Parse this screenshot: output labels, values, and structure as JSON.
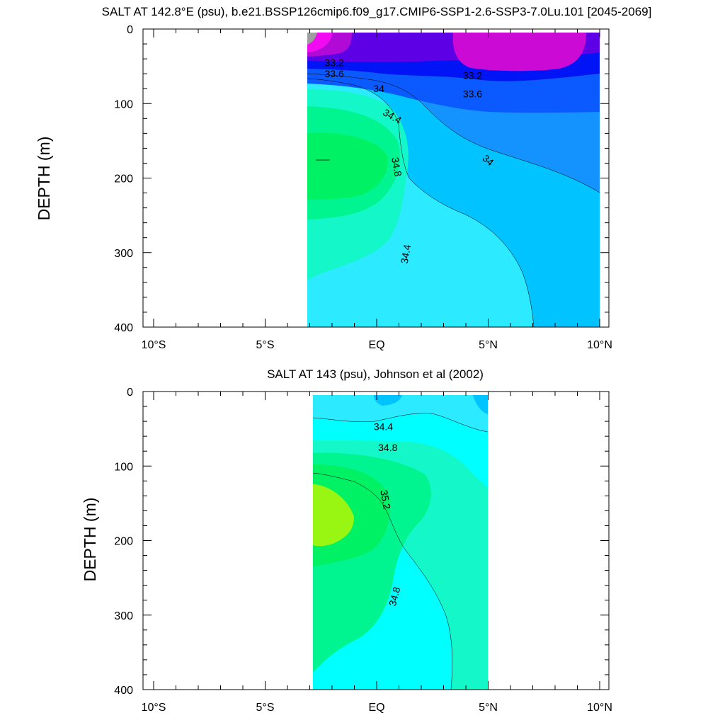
{
  "chart_data": [
    {
      "type": "contour",
      "title": "SALT AT 142.8°E (psu), b.e21.BSSP126cmip6.f09_g17.CMIP6-SSP1-2.6-SSP3-7.0Lu.101 [2045-2069]",
      "ylabel": "DEPTH (m)",
      "xlabel": "",
      "x_range": [
        -10,
        10
      ],
      "y_range": [
        0,
        400
      ],
      "y_reversed": true,
      "x_ticks": [
        {
          "value": -10,
          "label": "10°S"
        },
        {
          "value": -5,
          "label": "5°S"
        },
        {
          "value": 0,
          "label": "EQ"
        },
        {
          "value": 5,
          "label": "5°N"
        },
        {
          "value": 10,
          "label": "10°N"
        }
      ],
      "y_ticks": [
        {
          "value": 0,
          "label": "0"
        },
        {
          "value": 100,
          "label": "100"
        },
        {
          "value": 200,
          "label": "200"
        },
        {
          "value": 300,
          "label": "300"
        },
        {
          "value": 400,
          "label": "400"
        }
      ],
      "data_extent": {
        "lat": [
          -3.2,
          10
        ],
        "depth": [
          5,
          400
        ]
      },
      "fill_colors": {
        "gray": "#9e9e9e",
        "magenta": "#f20af2",
        "purple": "#b10ad6",
        "violet": "#5e00e6",
        "blue": "#0014f5",
        "mid_blue": "#0a5aff",
        "sky_blue": "#1493ff",
        "azure": "#00c3ff",
        "light_cyan": "#2ceaff",
        "aqua_green": "#14f7c8",
        "sea_green": "#00f590",
        "green": "#00f264"
      },
      "contour_labels": [
        {
          "text": "33.2",
          "lat": -1.9,
          "depth": 45,
          "angle": 0
        },
        {
          "text": "33.6",
          "lat": -1.9,
          "depth": 60,
          "angle": 0
        },
        {
          "text": "34",
          "lat": 0.1,
          "depth": 80,
          "angle": 0
        },
        {
          "text": "34.4",
          "lat": 0.7,
          "depth": 117,
          "angle": 30
        },
        {
          "text": "34.8",
          "lat": 0.9,
          "depth": 185,
          "angle": 80
        },
        {
          "text": "34.4",
          "lat": 1.3,
          "depth": 302,
          "angle": -80
        },
        {
          "text": "33.2",
          "lat": 4.3,
          "depth": 62,
          "angle": 0
        },
        {
          "text": "33.6",
          "lat": 4.3,
          "depth": 87,
          "angle": 0
        },
        {
          "text": "34",
          "lat": 5.0,
          "depth": 176,
          "angle": 40
        }
      ]
    },
    {
      "type": "contour",
      "title": "SALT AT 143 (psu), Johnson et al (2002)",
      "ylabel": "DEPTH (m)",
      "xlabel": "",
      "x_range": [
        -10,
        10
      ],
      "y_range": [
        0,
        400
      ],
      "y_reversed": true,
      "x_ticks": [
        {
          "value": -10,
          "label": "10°S"
        },
        {
          "value": -5,
          "label": "5°S"
        },
        {
          "value": 0,
          "label": "EQ"
        },
        {
          "value": 5,
          "label": "5°N"
        },
        {
          "value": 10,
          "label": "10°N"
        }
      ],
      "y_ticks": [
        {
          "value": 0,
          "label": "0"
        },
        {
          "value": 100,
          "label": "100"
        },
        {
          "value": 200,
          "label": "200"
        },
        {
          "value": 300,
          "label": "300"
        },
        {
          "value": 400,
          "label": "400"
        }
      ],
      "data_extent": {
        "lat": [
          -2.9,
          5
        ],
        "depth": [
          5,
          400
        ]
      },
      "fill_colors": {
        "azure": "#00c3ff",
        "light_cyan": "#2ceaff",
        "cyan": "#00ffff",
        "aqua_green": "#14f7c8",
        "sea_green": "#00f590",
        "green": "#00f264",
        "lime": "#99f512"
      },
      "contour_labels": [
        {
          "text": "34.4",
          "lat": 0.3,
          "depth": 47,
          "angle": 0
        },
        {
          "text": "34.8",
          "lat": 0.5,
          "depth": 75,
          "angle": 0
        },
        {
          "text": "35.2",
          "lat": 0.4,
          "depth": 145,
          "angle": 80
        },
        {
          "text": "34.8",
          "lat": 0.8,
          "depth": 275,
          "angle": -75
        }
      ]
    }
  ]
}
